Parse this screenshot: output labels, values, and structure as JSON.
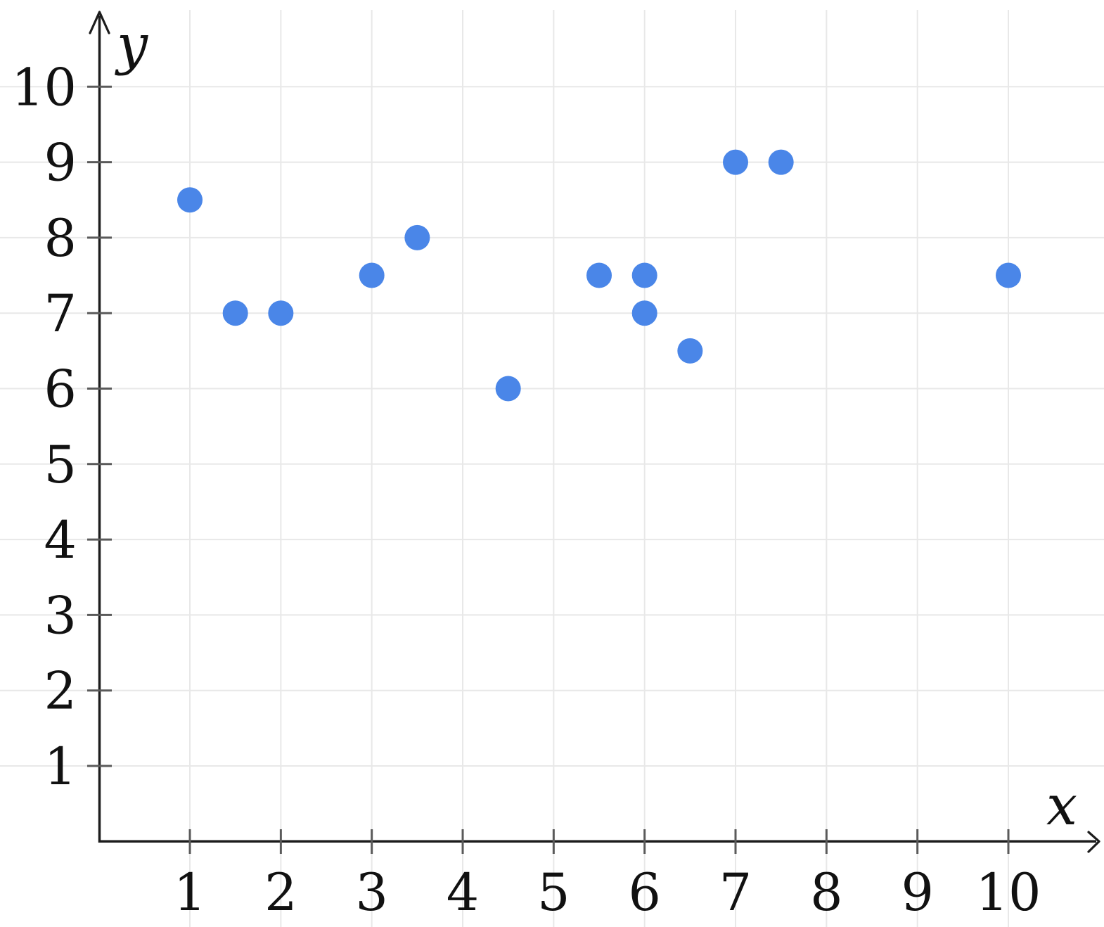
{
  "chart_data": {
    "type": "scatter",
    "title": "",
    "xlabel": "x",
    "ylabel": "y",
    "xlim": [
      0,
      11
    ],
    "ylim": [
      0,
      11
    ],
    "x_ticks": [
      1,
      2,
      3,
      4,
      5,
      6,
      7,
      8,
      9,
      10
    ],
    "y_ticks": [
      1,
      2,
      3,
      4,
      5,
      6,
      7,
      8,
      9,
      10
    ],
    "grid": true,
    "legend": "none",
    "points": [
      {
        "x": 1,
        "y": 8.5
      },
      {
        "x": 1.5,
        "y": 7
      },
      {
        "x": 2,
        "y": 7
      },
      {
        "x": 3,
        "y": 7.5
      },
      {
        "x": 3.5,
        "y": 8
      },
      {
        "x": 4.5,
        "y": 6
      },
      {
        "x": 5.5,
        "y": 7.5
      },
      {
        "x": 6,
        "y": 7.5
      },
      {
        "x": 6,
        "y": 7
      },
      {
        "x": 6.5,
        "y": 6.5
      },
      {
        "x": 7,
        "y": 9
      },
      {
        "x": 7.5,
        "y": 9
      },
      {
        "x": 10,
        "y": 7.5
      }
    ],
    "colors": {
      "point": "#4a86e8",
      "grid": "#e8e8e8",
      "axis": "#1c1c1c",
      "tick": "#5a5a5a",
      "label": "#111111"
    }
  }
}
